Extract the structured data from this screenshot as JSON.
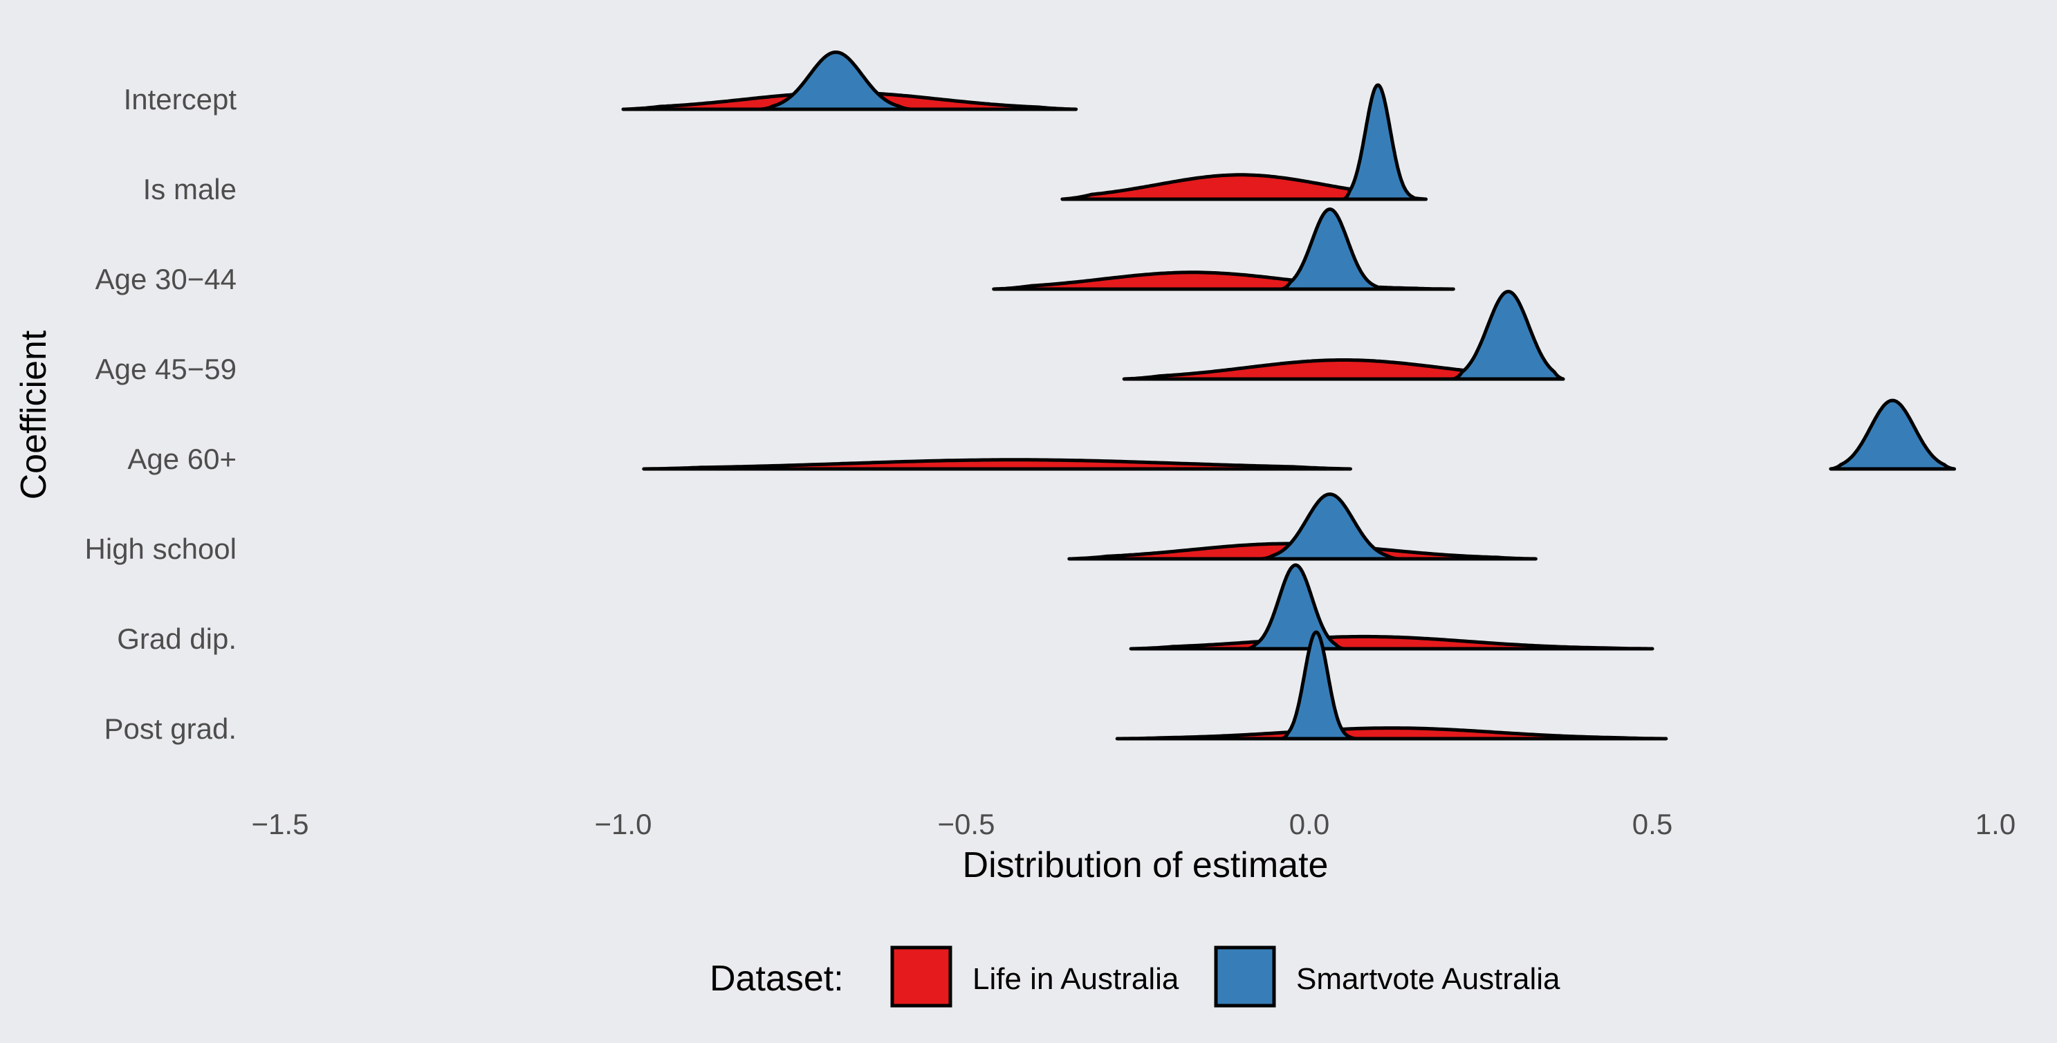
{
  "chart_data": {
    "type": "ridgeline",
    "title": "",
    "xlabel": "Distribution of estimate",
    "ylabel": "Coefficient",
    "xlim": [
      -1.5,
      1.0
    ],
    "x_ticks": [
      -1.5,
      -1.0,
      -0.5,
      0.0,
      0.5,
      1.0
    ],
    "x_tick_labels": [
      "−1.5",
      "−1.0",
      "−0.5",
      "0.0",
      "0.5",
      "1.0"
    ],
    "grid": false,
    "legend": {
      "title": "Dataset:",
      "placement": "bottom",
      "entries": [
        {
          "label": "Life in Australia",
          "color": "#e41a1c"
        },
        {
          "label": "Smartvote Australia",
          "color": "#377eb8"
        }
      ]
    },
    "categories": [
      "Intercept",
      "Is male",
      "Age 30−44",
      "Age 45−59",
      "Age 60+",
      "High school",
      "Grad dip.",
      "Post grad."
    ],
    "series": [
      {
        "name": "Life in Australia",
        "color": "#e41a1c",
        "distributions": [
          {
            "min": -1.0,
            "max": -0.34,
            "mode": -0.68,
            "scale": 0.14,
            "peak": 0.22
          },
          {
            "min": -0.36,
            "max": 0.17,
            "mode": -0.1,
            "scale": 0.12,
            "peak": 0.32
          },
          {
            "min": -0.46,
            "max": 0.21,
            "mode": -0.17,
            "scale": 0.13,
            "peak": 0.22
          },
          {
            "min": -0.27,
            "max": 0.37,
            "mode": 0.05,
            "scale": 0.14,
            "peak": 0.25
          },
          {
            "min": -0.97,
            "max": 0.06,
            "mode": -0.43,
            "scale": 0.24,
            "peak": 0.12
          },
          {
            "min": -0.35,
            "max": 0.33,
            "mode": -0.03,
            "scale": 0.14,
            "peak": 0.2
          },
          {
            "min": -0.26,
            "max": 0.5,
            "mode": 0.08,
            "scale": 0.15,
            "peak": 0.16
          },
          {
            "min": -0.28,
            "max": 0.52,
            "mode": 0.12,
            "scale": 0.15,
            "peak": 0.14
          }
        ]
      },
      {
        "name": "Smartvote Australia",
        "color": "#377eb8",
        "distributions": [
          {
            "min": -0.8,
            "max": -0.58,
            "mode": -0.69,
            "scale": 0.038,
            "peak": 0.75
          },
          {
            "min": 0.05,
            "max": 0.16,
            "mode": 0.1,
            "scale": 0.018,
            "peak": 1.5
          },
          {
            "min": -0.04,
            "max": 0.11,
            "mode": 0.03,
            "scale": 0.026,
            "peak": 1.05
          },
          {
            "min": 0.21,
            "max": 0.37,
            "mode": 0.29,
            "scale": 0.03,
            "peak": 1.15
          },
          {
            "min": 0.76,
            "max": 0.94,
            "mode": 0.85,
            "scale": 0.032,
            "peak": 0.9
          },
          {
            "min": -0.07,
            "max": 0.13,
            "mode": 0.03,
            "scale": 0.034,
            "peak": 0.85
          },
          {
            "min": -0.09,
            "max": 0.05,
            "mode": -0.02,
            "scale": 0.024,
            "peak": 1.1
          },
          {
            "min": -0.04,
            "max": 0.07,
            "mode": 0.01,
            "scale": 0.017,
            "peak": 1.4
          }
        ]
      }
    ]
  }
}
